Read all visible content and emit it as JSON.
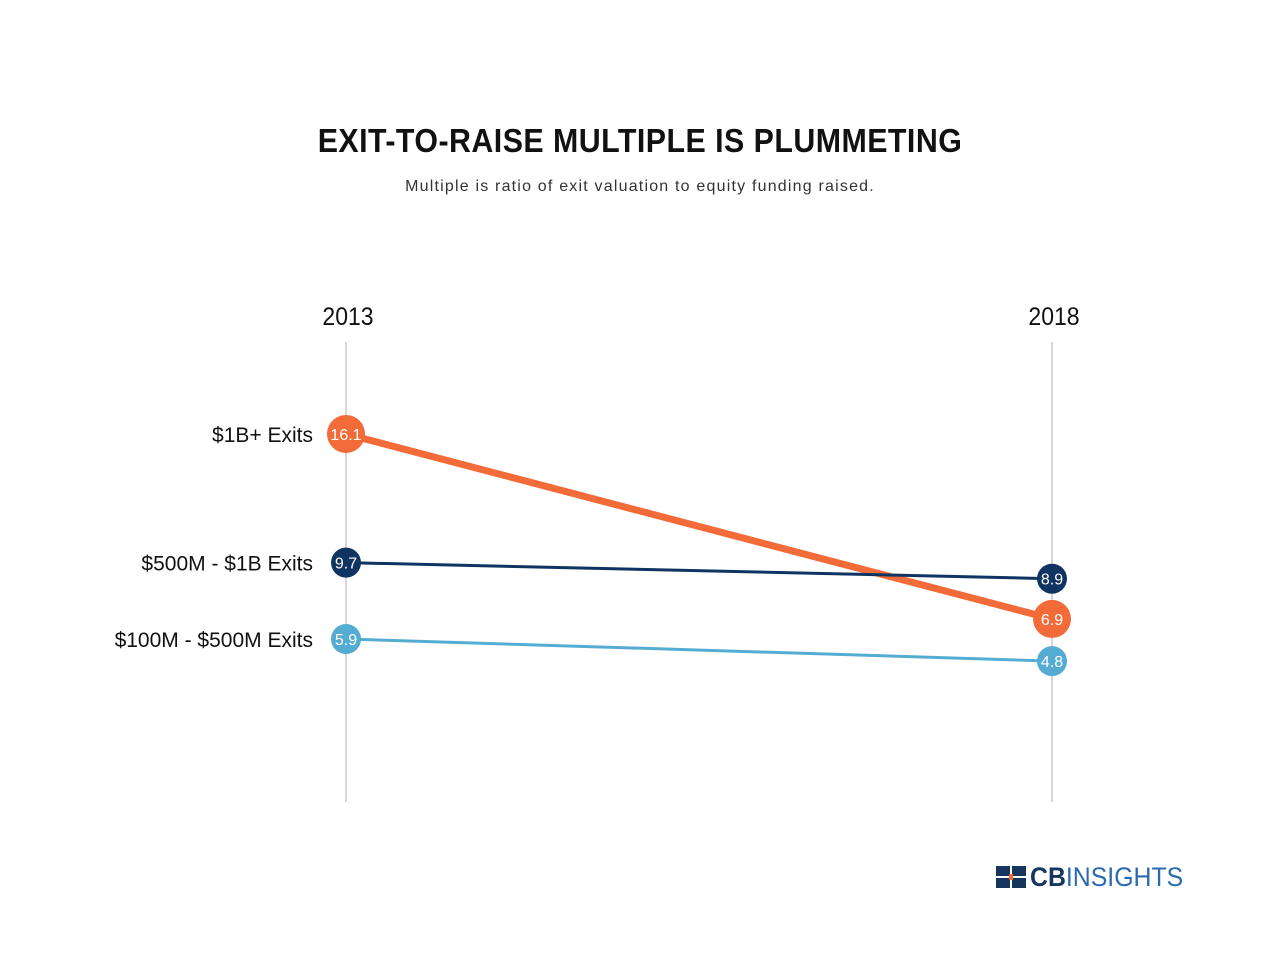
{
  "chart_data": {
    "type": "line",
    "title": "EXIT-TO-RAISE MULTIPLE IS PLUMMETING",
    "subtitle": "Multiple is ratio of exit valuation to equity funding raised.",
    "categories": [
      "2013",
      "2018"
    ],
    "series": [
      {
        "name": "$1B+ Exits",
        "values": [
          16.1,
          6.9
        ],
        "color": "#f26b38"
      },
      {
        "name": "$500M - $1B Exits",
        "values": [
          9.7,
          8.9
        ],
        "color": "#0f3462"
      },
      {
        "name": "$100M - $500M Exits",
        "values": [
          5.9,
          4.8
        ],
        "color": "#55acd3"
      }
    ],
    "grid": false
  },
  "branding": {
    "logo_cb": "CB",
    "logo_insights": "INSIGHTS",
    "logo_icon": "cb-insights-logo-icon",
    "colors": {
      "dark": "#17365d",
      "orange": "#f26b38",
      "blue": "#2a6ab0"
    }
  }
}
